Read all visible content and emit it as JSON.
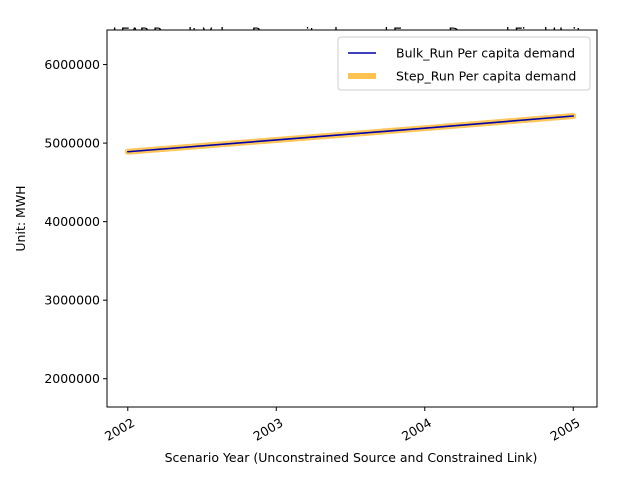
{
  "chart_data": {
    "type": "line",
    "title": "LEAP Result Value: Per capita demand Energy Demand Final Units",
    "xlabel": "Scenario Year (Unconstrained Source and Constrained Link)",
    "ylabel": "Unit: MWH",
    "x": [
      2002,
      2003,
      2004,
      2005
    ],
    "xlim": [
      2001.86,
      2005.16
    ],
    "ylim": [
      1640000,
      6440000
    ],
    "yticks": [
      2000000,
      3000000,
      4000000,
      5000000,
      6000000
    ],
    "grid": false,
    "legend_position": "top-right",
    "series": [
      {
        "name": "Bulk_Run Per capita demand",
        "color": "#0000aa",
        "values": [
          4890000,
          5040000,
          5190000,
          5345000
        ]
      },
      {
        "name": "Step_Run Per capita demand",
        "color": "#ffb833",
        "values": [
          4890000,
          5040000,
          5190000,
          5345000
        ]
      }
    ]
  }
}
